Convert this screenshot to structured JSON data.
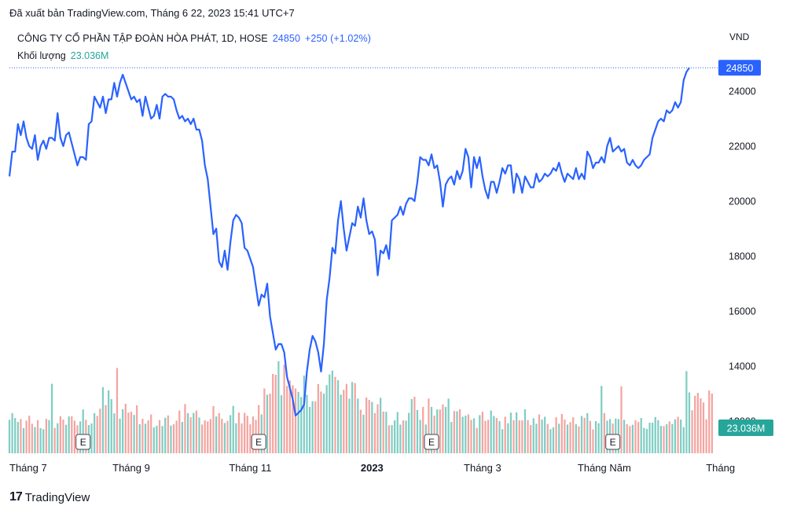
{
  "published": "Đã xuất bản TradingView.com, Tháng 6 22, 2023 15:41 UTC+7",
  "legend": {
    "symbol": "CÔNG TY CỔ PHẦN TẬP ĐOÀN HÒA PHÁT, 1D, HOSE",
    "last": "24850",
    "change": "+250 (+1.02%)",
    "volume_label": "Khối lượng",
    "volume_value": "23.036M"
  },
  "brand": "TradingView",
  "colors": {
    "line": "#2962ff",
    "volume_up": "#7fcdc3",
    "volume_down": "#f4a4a0",
    "price_label_bg": "#2962ff",
    "volume_label_bg": "#26a69a"
  },
  "chart_data": {
    "type": "line",
    "currency": "VND",
    "ylim": [
      11900,
      25100
    ],
    "y_ticks": [
      12000,
      14000,
      16000,
      18000,
      20000,
      22000,
      24000
    ],
    "x_tick_labels": [
      {
        "label": "Tháng 7",
        "i": 0
      },
      {
        "label": "Tháng 9",
        "i": 43
      },
      {
        "label": "Tháng 11",
        "i": 85
      },
      {
        "label": "2023",
        "i": 128
      },
      {
        "label": "Tháng 3",
        "i": 167
      },
      {
        "label": "Tháng Năm",
        "i": 210
      },
      {
        "label": "Tháng",
        "i": 251
      }
    ],
    "last_price": "24850",
    "last_volume": "23.036M",
    "earnings_markers": [
      {
        "label": "E",
        "i": 26
      },
      {
        "label": "E",
        "i": 88
      },
      {
        "label": "E",
        "i": 149
      },
      {
        "label": "E",
        "i": 213
      }
    ],
    "price": [
      20900,
      21800,
      21800,
      22800,
      22400,
      22900,
      22300,
      22000,
      21900,
      22400,
      21500,
      22000,
      22200,
      21900,
      22300,
      22300,
      22200,
      23200,
      22300,
      22000,
      22400,
      22500,
      22100,
      21700,
      21300,
      21600,
      21600,
      21500,
      22800,
      22900,
      23800,
      23600,
      23400,
      23800,
      23200,
      23700,
      23700,
      24300,
      23800,
      24300,
      24600,
      24300,
      24000,
      23700,
      23800,
      23600,
      23700,
      23100,
      23800,
      23400,
      23000,
      23100,
      23500,
      23000,
      23800,
      23900,
      23800,
      23800,
      23700,
      23300,
      23000,
      23100,
      22900,
      23000,
      22800,
      23000,
      22600,
      22600,
      22200,
      21300,
      20800,
      19800,
      18800,
      19000,
      17800,
      17600,
      18200,
      17500,
      18500,
      19300,
      19500,
      19400,
      19200,
      18300,
      18200,
      17900,
      17600,
      16900,
      16200,
      16600,
      16500,
      17000,
      15800,
      15200,
      14600,
      14800,
      14800,
      14500,
      13600,
      13200,
      12800,
      12200,
      12300,
      12400,
      12600,
      13800,
      14600,
      15100,
      14900,
      14500,
      13800,
      14800,
      16400,
      17200,
      18300,
      18100,
      19300,
      20000,
      19000,
      18200,
      18700,
      19200,
      19100,
      19800,
      19400,
      20100,
      19300,
      18800,
      18900,
      18600,
      17300,
      18200,
      18100,
      18400,
      17900,
      19300,
      19400,
      19500,
      19800,
      19500,
      19900,
      20100,
      20100,
      20000,
      20700,
      21600,
      21500,
      21500,
      21300,
      21700,
      21200,
      21300,
      20700,
      19800,
      20600,
      20800,
      20900,
      20600,
      21100,
      20800,
      21100,
      21900,
      21600,
      20500,
      21600,
      21200,
      21600,
      20900,
      20400,
      20100,
      20700,
      20700,
      20300,
      20700,
      21200,
      21000,
      21300,
      21300,
      20300,
      21000,
      20800,
      20300,
      20900,
      20700,
      20500,
      20500,
      21000,
      20700,
      20800,
      21000,
      20900,
      21000,
      21200,
      21100,
      21400,
      21000,
      20700,
      21000,
      20900,
      20800,
      21200,
      20800,
      21000,
      20800,
      21800,
      21600,
      21200,
      21400,
      21400,
      21600,
      21400,
      22000,
      22300,
      21800,
      21900,
      22000,
      21800,
      21900,
      21400,
      21300,
      21500,
      21300,
      21200,
      21300,
      21500,
      21600,
      21700,
      22300,
      22600,
      22900,
      23000,
      22900,
      23300,
      23200,
      23300,
      23600,
      23400,
      23600,
      24400,
      24700,
      24850
    ],
    "volume_m": [
      12.9,
      15.5,
      13.6,
      12.1,
      13.2,
      9.7,
      12.6,
      14.5,
      11.4,
      10.1,
      12.8,
      9.7,
      9.3,
      13.3,
      12.8,
      26.8,
      9.8,
      11.6,
      14.3,
      13.0,
      11.0,
      14.2,
      14.3,
      12.6,
      10.8,
      12.3,
      16.9,
      12.9,
      10.9,
      11.5,
      15.5,
      14.4,
      17.2,
      25.5,
      18.6,
      24.3,
      20.9,
      15.4,
      32.9,
      13.4,
      17.0,
      19.1,
      15.7,
      16.0,
      14.8,
      18.5,
      11.2,
      13.3,
      11.4,
      12.7,
      15.0,
      10.0,
      10.6,
      12.8,
      10.5,
      13.7,
      14.6,
      10.7,
      11.2,
      12.6,
      16.5,
      12.1,
      19.0,
      15.5,
      13.9,
      15.6,
      16.5,
      13.8,
      11.1,
      12.7,
      12.3,
      13.2,
      18.2,
      14.2,
      15.5,
      13.3,
      11.7,
      12.5,
      14.7,
      18.3,
      11.6,
      15.7,
      11.5,
      15.6,
      14.5,
      11.2,
      14.2,
      12.9,
      18.6,
      15.0,
      25.0,
      22.6,
      23.0,
      30.6,
      30.3,
      35.5,
      22.4,
      34.2,
      26.0,
      28.1,
      26.2,
      25.0,
      23.7,
      21.7,
      30.0,
      22.6,
      17.9,
      20.1,
      20.0,
      26.7,
      23.8,
      23.0,
      26.3,
      30.4,
      31.9,
      29.5,
      28.2,
      22.6,
      24.5,
      26.8,
      21.1,
      27.5,
      27.1,
      21.1,
      16.8,
      14.9,
      21.5,
      20.6,
      19.8,
      15.5,
      18.9,
      21.4,
      16.1,
      16.0,
      10.8,
      10.9,
      12.7,
      15.9,
      11.1,
      12.7,
      12.6,
      15.6,
      20.9,
      21.8,
      16.7,
      12.9,
      17.9,
      11.1,
      21.1,
      17.9,
      14.5,
      16.9,
      16.9,
      18.9,
      17.9,
      21.1,
      12.1,
      16.3,
      16.2,
      17.0,
      14.1,
      14.5,
      15.0,
      12.9,
      13.5,
      9.8,
      14.7,
      16.0,
      12.5,
      12.9,
      16.5,
      14.4,
      13.6,
      12.4,
      9.3,
      14.1,
      11.6,
      15.7,
      12.8,
      15.8,
      12.7,
      12.7,
      17.0,
      12.8,
      10.9,
      13.5,
      11.4,
      15.0,
      13.0,
      14.1,
      11.3,
      9.3,
      10.0,
      13.9,
      11.4,
      15.2,
      13.0,
      11.1,
      12.0,
      13.9,
      11.2,
      10.4,
      14.4,
      13.7,
      15.5,
      12.5,
      9.2,
      12.4,
      11.6,
      26.0,
      15.5,
      12.6,
      13.2,
      11.5,
      13.4,
      13.2,
      25.8,
      12.9,
      11.2,
      10.5,
      11.0,
      12.7,
      12.1,
      13.6,
      9.8,
      9.4,
      11.8,
      11.8,
      14.0,
      12.8,
      10.6,
      10.5,
      11.2,
      12.3,
      11.3,
      13.1,
      14.1,
      13.0,
      10.1,
      31.7,
      23.5,
      16.6,
      22.2,
      23.3,
      21.2,
      19.6,
      13.1,
      24.2,
      23.036
    ]
  }
}
